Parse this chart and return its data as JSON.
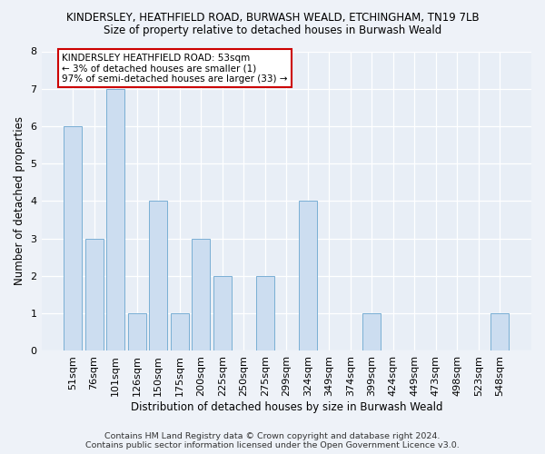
{
  "title": "KINDERSLEY, HEATHFIELD ROAD, BURWASH WEALD, ETCHINGHAM, TN19 7LB",
  "subtitle": "Size of property relative to detached houses in Burwash Weald",
  "xlabel": "Distribution of detached houses by size in Burwash Weald",
  "ylabel": "Number of detached properties",
  "categories": [
    "51sqm",
    "76sqm",
    "101sqm",
    "126sqm",
    "150sqm",
    "175sqm",
    "200sqm",
    "225sqm",
    "250sqm",
    "275sqm",
    "299sqm",
    "324sqm",
    "349sqm",
    "374sqm",
    "399sqm",
    "424sqm",
    "449sqm",
    "473sqm",
    "498sqm",
    "523sqm",
    "548sqm"
  ],
  "values": [
    6,
    3,
    7,
    1,
    4,
    1,
    3,
    2,
    0,
    2,
    0,
    4,
    0,
    0,
    1,
    0,
    0,
    0,
    0,
    0,
    1
  ],
  "bar_color": "#ccddf0",
  "bar_edge_color": "#7aafd4",
  "annotation_text": "KINDERSLEY HEATHFIELD ROAD: 53sqm\n← 3% of detached houses are smaller (1)\n97% of semi-detached houses are larger (33) →",
  "annotation_box_edge_color": "#cc0000",
  "ylim": [
    0,
    8
  ],
  "yticks": [
    0,
    1,
    2,
    3,
    4,
    5,
    6,
    7,
    8
  ],
  "footer_line1": "Contains HM Land Registry data © Crown copyright and database right 2024.",
  "footer_line2": "Contains public sector information licensed under the Open Government Licence v3.0.",
  "bg_color": "#eef2f8",
  "plot_bg_color": "#e8eef6"
}
